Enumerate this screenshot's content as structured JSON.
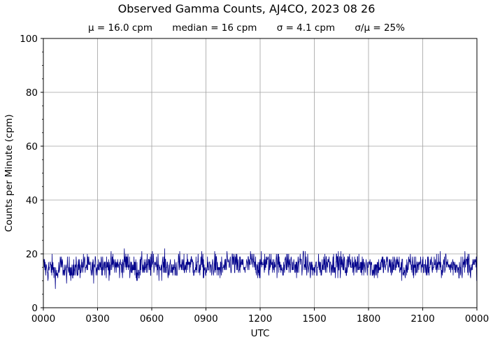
{
  "chart_data": {
    "type": "line",
    "title": "Observed Gamma Counts, AJ4CO, 2023 08 26",
    "subtitle": {
      "mean": "μ = 16.0 cpm",
      "median": "median = 16 cpm",
      "sigma": "σ = 4.1 cpm",
      "ratio": "σ/μ = 25%"
    },
    "xlabel": "UTC",
    "ylabel": "Counts per Minute (cpm)",
    "x_tick_labels": [
      "0000",
      "0300",
      "0600",
      "0900",
      "1200",
      "1500",
      "1800",
      "2100",
      "0000"
    ],
    "y_ticks": [
      0,
      20,
      40,
      60,
      80,
      100
    ],
    "ylim": [
      0,
      100
    ],
    "xlim_hours": [
      0,
      24
    ],
    "grid": true,
    "line_color": "#00008b",
    "series": [
      {
        "x_unit": "hours UTC",
        "y_unit": "cpm",
        "points": [
          [
            0.0,
            16
          ],
          [
            0.25,
            14
          ],
          [
            0.5,
            15
          ],
          [
            0.75,
            12
          ],
          [
            1.0,
            16
          ],
          [
            1.25,
            13
          ],
          [
            1.5,
            15
          ],
          [
            1.75,
            14
          ],
          [
            2.0,
            15
          ],
          [
            2.25,
            16
          ],
          [
            2.5,
            15
          ],
          [
            2.75,
            14
          ],
          [
            3.0,
            16
          ],
          [
            3.25,
            17
          ],
          [
            3.5,
            15
          ],
          [
            3.75,
            16
          ],
          [
            4.0,
            16
          ],
          [
            4.25,
            15
          ],
          [
            4.5,
            17
          ],
          [
            4.75,
            16
          ],
          [
            5.0,
            15
          ],
          [
            5.25,
            14
          ],
          [
            5.5,
            16
          ],
          [
            5.75,
            15
          ],
          [
            6.0,
            16
          ],
          [
            6.25,
            17
          ],
          [
            6.5,
            15
          ],
          [
            6.75,
            16
          ],
          [
            7.0,
            14
          ],
          [
            7.25,
            15
          ],
          [
            7.5,
            16
          ],
          [
            7.75,
            15
          ],
          [
            8.0,
            17
          ],
          [
            8.25,
            16
          ],
          [
            8.5,
            15
          ],
          [
            8.75,
            16
          ],
          [
            9.0,
            14
          ],
          [
            9.25,
            15
          ],
          [
            9.5,
            16
          ],
          [
            9.75,
            14
          ],
          [
            10.0,
            15
          ],
          [
            10.25,
            16
          ],
          [
            10.5,
            17
          ],
          [
            10.75,
            15
          ],
          [
            11.0,
            16
          ],
          [
            11.25,
            15
          ],
          [
            11.5,
            17
          ],
          [
            11.75,
            16
          ],
          [
            12.0,
            15
          ],
          [
            12.25,
            17
          ],
          [
            12.5,
            16
          ],
          [
            12.75,
            17
          ],
          [
            13.0,
            16
          ],
          [
            13.25,
            15
          ],
          [
            13.5,
            17
          ],
          [
            13.75,
            16
          ],
          [
            14.0,
            15
          ],
          [
            14.25,
            17
          ],
          [
            14.5,
            16
          ],
          [
            14.75,
            15
          ],
          [
            15.0,
            14
          ],
          [
            15.25,
            15
          ],
          [
            15.5,
            16
          ],
          [
            15.75,
            17
          ],
          [
            16.0,
            16
          ],
          [
            16.25,
            17
          ],
          [
            16.5,
            16
          ],
          [
            16.75,
            15
          ],
          [
            17.0,
            17
          ],
          [
            17.25,
            16
          ],
          [
            17.5,
            15
          ],
          [
            17.75,
            16
          ],
          [
            18.0,
            17
          ],
          [
            18.25,
            14
          ],
          [
            18.5,
            15
          ],
          [
            18.75,
            16
          ],
          [
            19.0,
            16
          ],
          [
            19.25,
            15
          ],
          [
            19.5,
            17
          ],
          [
            19.75,
            15
          ],
          [
            20.0,
            14
          ],
          [
            20.25,
            16
          ],
          [
            20.5,
            15
          ],
          [
            20.75,
            16
          ],
          [
            21.0,
            16
          ],
          [
            21.25,
            15
          ],
          [
            21.5,
            16
          ],
          [
            21.75,
            16
          ],
          [
            22.0,
            15
          ],
          [
            22.25,
            17
          ],
          [
            22.5,
            15
          ],
          [
            22.75,
            16
          ],
          [
            23.0,
            15
          ],
          [
            23.25,
            16
          ],
          [
            23.5,
            17
          ],
          [
            23.75,
            15
          ],
          [
            24.0,
            16
          ]
        ]
      }
    ]
  }
}
